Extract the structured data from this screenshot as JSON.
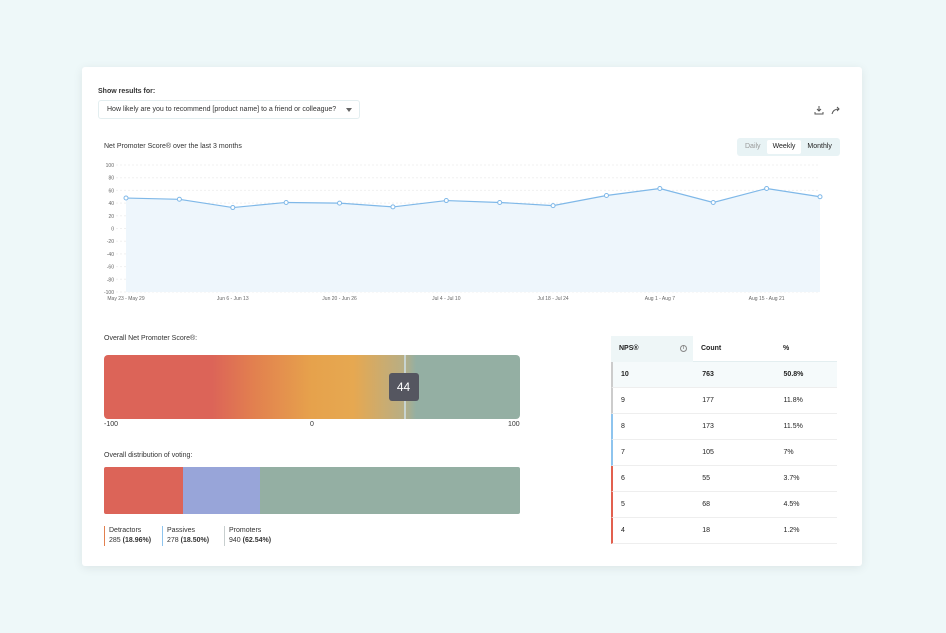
{
  "header": {
    "show_results_label": "Show results for:",
    "question_select": "How likely are you to recommend [product name] to a friend or colleague?",
    "download_icon": "download-icon",
    "share_icon": "share-icon"
  },
  "trend": {
    "title": "Net Promoter Score® over the last 3 months",
    "periods": [
      "Daily",
      "Weekly",
      "Monthly"
    ],
    "selected_period": "Weekly"
  },
  "chart_data": {
    "type": "line",
    "ylim": [
      -100,
      100
    ],
    "yticks": [
      100,
      80,
      60,
      40,
      20,
      0,
      -20,
      -40,
      -60,
      -80,
      -100
    ],
    "xtick_labels": [
      "May 23 - May 29",
      "Jun 6 - Jun 13",
      "Jun 20 - Jun 26",
      "Jul 4 - Jul 10",
      "Jul 18 - Jul 24",
      "Aug 1 - Aug 7",
      "Aug 15 - Aug 21"
    ],
    "values": [
      48,
      46,
      33,
      41,
      40,
      34,
      44,
      41,
      36,
      52,
      63,
      41,
      63,
      50
    ],
    "grid": true,
    "color": "#7fb8e8",
    "fill": "#eef6fc"
  },
  "overall": {
    "title": "Overall Net Promoter Score®:",
    "score": "44",
    "score_value": 44,
    "min": "-100",
    "mid": "0",
    "max": "100"
  },
  "distribution": {
    "title": "Overall distribution of voting:",
    "groups": [
      {
        "name": "Detractors",
        "count": "285",
        "pct": "(18.96%)",
        "value": 18.96,
        "color": "#dc6458",
        "line": "#e2804f"
      },
      {
        "name": "Passives",
        "count": "278",
        "pct": "(18.50%)",
        "value": 18.5,
        "color": "#98a5d9",
        "line": "#8ec4ee"
      },
      {
        "name": "Promoters",
        "count": "940",
        "pct": "(62.54%)",
        "value": 62.54,
        "color": "#94afa3",
        "line": "#c8cfcf"
      }
    ]
  },
  "table": {
    "headers": [
      "NPS®",
      "Count",
      "%"
    ],
    "info_icon": "info-icon",
    "rows": [
      [
        "10",
        "763",
        "50.8%"
      ],
      [
        "9",
        "177",
        "11.8%"
      ],
      [
        "8",
        "173",
        "11.5%"
      ],
      [
        "7",
        "105",
        "7%"
      ],
      [
        "6",
        "55",
        "3.7%"
      ],
      [
        "5",
        "68",
        "4.5%"
      ],
      [
        "4",
        "18",
        "1.2%"
      ]
    ]
  }
}
